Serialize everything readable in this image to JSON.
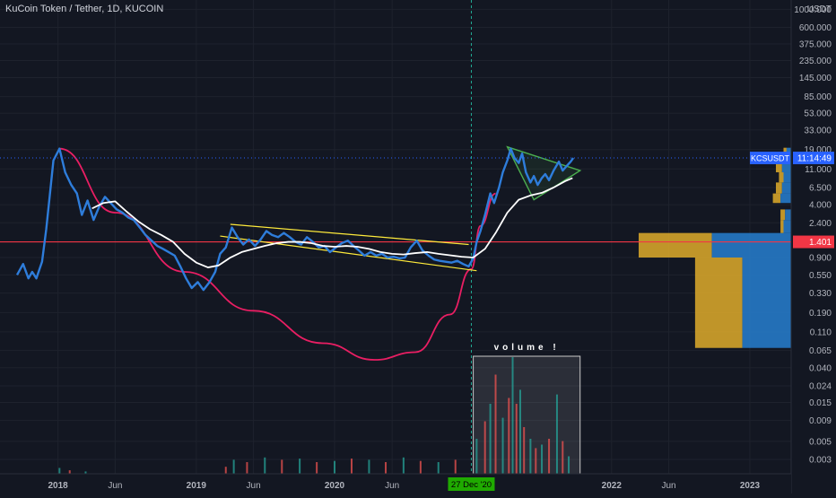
{
  "header": {
    "title": "KuCoin Token / Tether, 1D, KUCOIN"
  },
  "chart_data": {
    "type": "line",
    "symbol": "KCSUSDT",
    "title": "KuCoin Token / Tether, 1D, KUCOIN",
    "price_scale": "log",
    "currency_label": "USDT",
    "y_ticks": [
      "1000.000",
      "600.000",
      "375.000",
      "235.000",
      "145.000",
      "85.000",
      "53.000",
      "33.000",
      "19.000",
      "11.000",
      "6.500",
      "4.000",
      "2.400",
      "0.900",
      "0.550",
      "0.330",
      "0.190",
      "0.110",
      "0.065",
      "0.040",
      "0.024",
      "0.015",
      "0.009",
      "0.005",
      "0.003"
    ],
    "x_ticks": [
      "2018",
      "Jun",
      "2019",
      "Jun",
      "2020",
      "Jun",
      "2022",
      "Jun",
      "2023"
    ],
    "x_ticks_bold": [
      "2018",
      "2019",
      "2020",
      "2022",
      "2023"
    ],
    "ylim": [
      0.002,
      1300
    ],
    "xlim": [
      "2017-08-01",
      "2023-04-20"
    ],
    "current_price": {
      "label": "KCSUSDT",
      "countdown": "11:14:49",
      "color": "#2962ff"
    },
    "horizontal_level": {
      "value": 1.401,
      "label": "1.401",
      "color": "#f23645"
    },
    "vertical_marker": {
      "date": "2020-12-27",
      "label": "27 Dec '20",
      "color": "#22ab94"
    },
    "annotation": {
      "text": "volume !"
    },
    "series": [
      {
        "color": "#2e7ddb",
        "points": [
          [
            "2017-09-15",
            0.55
          ],
          [
            "2017-10-01",
            0.75
          ],
          [
            "2017-10-15",
            0.5
          ],
          [
            "2017-10-25",
            0.6
          ],
          [
            "2017-11-05",
            0.5
          ],
          [
            "2017-11-20",
            0.8
          ],
          [
            "2017-12-01",
            2.0
          ],
          [
            "2017-12-10",
            5.0
          ],
          [
            "2017-12-20",
            14.0
          ],
          [
            "2018-01-05",
            19.5
          ],
          [
            "2018-01-20",
            10.0
          ],
          [
            "2018-02-05",
            7.0
          ],
          [
            "2018-02-20",
            5.5
          ],
          [
            "2018-03-05",
            3.0
          ],
          [
            "2018-03-20",
            4.5
          ],
          [
            "2018-04-05",
            2.6
          ],
          [
            "2018-04-20",
            3.8
          ],
          [
            "2018-05-05",
            5.0
          ],
          [
            "2018-05-20",
            4.2
          ],
          [
            "2018-06-05",
            3.5
          ],
          [
            "2018-06-20",
            3.2
          ],
          [
            "2018-07-05",
            2.8
          ],
          [
            "2018-07-20",
            2.6
          ],
          [
            "2018-08-05",
            2.1
          ],
          [
            "2018-08-20",
            1.7
          ],
          [
            "2018-09-05",
            1.45
          ],
          [
            "2018-09-20",
            1.25
          ],
          [
            "2018-10-05",
            1.15
          ],
          [
            "2018-10-20",
            1.05
          ],
          [
            "2018-11-05",
            0.95
          ],
          [
            "2018-11-20",
            0.7
          ],
          [
            "2018-12-05",
            0.5
          ],
          [
            "2018-12-20",
            0.38
          ],
          [
            "2019-01-05",
            0.45
          ],
          [
            "2019-01-20",
            0.36
          ],
          [
            "2019-02-05",
            0.45
          ],
          [
            "2019-02-20",
            0.6
          ],
          [
            "2019-03-05",
            1.0
          ],
          [
            "2019-03-20",
            1.2
          ],
          [
            "2019-04-05",
            2.1
          ],
          [
            "2019-04-20",
            1.6
          ],
          [
            "2019-05-05",
            1.3
          ],
          [
            "2019-05-20",
            1.5
          ],
          [
            "2019-06-05",
            1.25
          ],
          [
            "2019-06-20",
            1.5
          ],
          [
            "2019-07-05",
            1.9
          ],
          [
            "2019-07-20",
            1.7
          ],
          [
            "2019-08-05",
            1.6
          ],
          [
            "2019-08-20",
            1.8
          ],
          [
            "2019-09-05",
            1.6
          ],
          [
            "2019-09-20",
            1.4
          ],
          [
            "2019-10-05",
            1.3
          ],
          [
            "2019-10-20",
            1.6
          ],
          [
            "2019-11-05",
            1.4
          ],
          [
            "2019-11-20",
            1.2
          ],
          [
            "2019-12-05",
            1.25
          ],
          [
            "2019-12-20",
            1.05
          ],
          [
            "2020-01-05",
            1.2
          ],
          [
            "2020-01-20",
            1.35
          ],
          [
            "2020-02-05",
            1.45
          ],
          [
            "2020-02-20",
            1.25
          ],
          [
            "2020-03-05",
            1.1
          ],
          [
            "2020-03-20",
            0.95
          ],
          [
            "2020-04-05",
            1.05
          ],
          [
            "2020-04-20",
            0.95
          ],
          [
            "2020-05-05",
            1.0
          ],
          [
            "2020-05-20",
            0.9
          ],
          [
            "2020-06-05",
            0.92
          ],
          [
            "2020-06-20",
            0.88
          ],
          [
            "2020-07-05",
            0.9
          ],
          [
            "2020-07-20",
            1.2
          ],
          [
            "2020-08-05",
            1.45
          ],
          [
            "2020-08-20",
            1.1
          ],
          [
            "2020-09-05",
            0.95
          ],
          [
            "2020-09-20",
            0.85
          ],
          [
            "2020-10-05",
            0.82
          ],
          [
            "2020-10-20",
            0.8
          ],
          [
            "2020-11-05",
            0.78
          ],
          [
            "2020-11-20",
            0.82
          ],
          [
            "2020-12-05",
            0.75
          ],
          [
            "2020-12-20",
            0.7
          ],
          [
            "2021-01-01",
            0.88
          ],
          [
            "2021-01-10",
            1.4
          ],
          [
            "2021-01-20",
            1.9
          ],
          [
            "2021-02-01",
            3.0
          ],
          [
            "2021-02-15",
            5.5
          ],
          [
            "2021-02-25",
            4.2
          ],
          [
            "2021-03-10",
            6.5
          ],
          [
            "2021-03-20",
            10.0
          ],
          [
            "2021-04-01",
            14.0
          ],
          [
            "2021-04-10",
            19.5
          ],
          [
            "2021-04-20",
            15.0
          ],
          [
            "2021-05-01",
            13.0
          ],
          [
            "2021-05-10",
            17.0
          ],
          [
            "2021-05-20",
            10.0
          ],
          [
            "2021-06-01",
            7.5
          ],
          [
            "2021-06-10",
            9.0
          ],
          [
            "2021-06-20",
            7.0
          ],
          [
            "2021-07-01",
            8.5
          ],
          [
            "2021-07-10",
            9.5
          ],
          [
            "2021-07-20",
            8.0
          ],
          [
            "2021-08-01",
            10.5
          ],
          [
            "2021-08-15",
            13.5
          ],
          [
            "2021-08-25",
            10.5
          ],
          [
            "2021-09-05",
            12.0
          ],
          [
            "2021-09-15",
            13.5
          ],
          [
            "2021-09-22",
            15.0
          ]
        ]
      },
      {
        "color": "#ffffff",
        "points": [
          [
            "2018-04-01",
            3.6
          ],
          [
            "2018-05-01",
            4.2
          ],
          [
            "2018-06-01",
            4.4
          ],
          [
            "2018-07-01",
            3.3
          ],
          [
            "2018-08-01",
            2.5
          ],
          [
            "2018-09-01",
            2.0
          ],
          [
            "2018-10-01",
            1.7
          ],
          [
            "2018-11-01",
            1.4
          ],
          [
            "2018-12-01",
            1.0
          ],
          [
            "2019-01-01",
            0.78
          ],
          [
            "2019-02-01",
            0.68
          ],
          [
            "2019-03-01",
            0.72
          ],
          [
            "2019-04-01",
            0.9
          ],
          [
            "2019-05-01",
            1.05
          ],
          [
            "2019-06-01",
            1.15
          ],
          [
            "2019-07-01",
            1.25
          ],
          [
            "2019-08-01",
            1.35
          ],
          [
            "2019-09-01",
            1.4
          ],
          [
            "2019-10-01",
            1.4
          ],
          [
            "2019-11-01",
            1.35
          ],
          [
            "2019-12-01",
            1.25
          ],
          [
            "2020-01-01",
            1.22
          ],
          [
            "2020-02-01",
            1.25
          ],
          [
            "2020-03-01",
            1.22
          ],
          [
            "2020-04-01",
            1.15
          ],
          [
            "2020-05-01",
            1.05
          ],
          [
            "2020-06-01",
            1.0
          ],
          [
            "2020-07-01",
            0.98
          ],
          [
            "2020-08-01",
            1.02
          ],
          [
            "2020-09-01",
            1.05
          ],
          [
            "2020-10-01",
            1.0
          ],
          [
            "2020-11-01",
            0.96
          ],
          [
            "2020-12-01",
            0.92
          ],
          [
            "2021-01-01",
            0.9
          ],
          [
            "2021-02-01",
            1.15
          ],
          [
            "2021-03-01",
            1.8
          ],
          [
            "2021-04-01",
            3.2
          ],
          [
            "2021-05-01",
            4.6
          ],
          [
            "2021-06-01",
            5.2
          ],
          [
            "2021-07-01",
            5.6
          ],
          [
            "2021-08-01",
            6.5
          ],
          [
            "2021-09-01",
            7.8
          ],
          [
            "2021-09-20",
            8.5
          ]
        ]
      }
    ],
    "drawings": [
      {
        "kind": "arc",
        "color": "#e91e63",
        "points": [
          [
            "2018-01-05",
            19.5
          ],
          [
            "2018-06-01",
            3.2
          ],
          [
            "2018-12-01",
            0.6
          ],
          [
            "2019-06-01",
            0.2
          ],
          [
            "2019-12-01",
            0.08
          ],
          [
            "2020-04-15",
            0.05
          ],
          [
            "2020-08-01",
            0.062
          ],
          [
            "2020-11-01",
            0.18
          ],
          [
            "2020-12-27",
            0.65
          ],
          [
            "2021-01-20",
            2.2
          ],
          [
            "2021-03-01",
            5.5
          ]
        ]
      },
      {
        "kind": "channel",
        "color": "#ffeb3b",
        "points": [
          [
            "2019-04-01",
            2.3
          ],
          [
            "2020-12-20",
            1.3
          ]
        ]
      },
      {
        "kind": "channel",
        "color": "#ffeb3b",
        "points": [
          [
            "2019-03-05",
            1.65
          ],
          [
            "2021-01-10",
            0.62
          ]
        ]
      },
      {
        "kind": "triangle",
        "color": "#4caf50",
        "points": [
          [
            "2021-04-01",
            20.5
          ],
          [
            "2021-10-10",
            10.5
          ],
          [
            "2021-06-10",
            4.6
          ]
        ]
      }
    ],
    "volume": {
      "color_up": "#26a69a",
      "color_down": "#ef5350",
      "data": [
        [
          "2018-01-05",
          0.05
        ],
        [
          "2018-02-01",
          0.03
        ],
        [
          "2018-03-15",
          0.02
        ],
        [
          "2019-03-20",
          0.06
        ],
        [
          "2019-04-10",
          0.12
        ],
        [
          "2019-05-15",
          0.1
        ],
        [
          "2019-07-01",
          0.14
        ],
        [
          "2019-08-15",
          0.12
        ],
        [
          "2019-10-01",
          0.13
        ],
        [
          "2019-11-15",
          0.1
        ],
        [
          "2020-01-01",
          0.11
        ],
        [
          "2020-02-15",
          0.13
        ],
        [
          "2020-04-01",
          0.12
        ],
        [
          "2020-05-15",
          0.1
        ],
        [
          "2020-07-01",
          0.14
        ],
        [
          "2020-08-15",
          0.11
        ],
        [
          "2020-10-01",
          0.1
        ],
        [
          "2020-11-15",
          0.12
        ],
        [
          "2021-01-10",
          0.3
        ],
        [
          "2021-02-01",
          0.45
        ],
        [
          "2021-02-15",
          0.6
        ],
        [
          "2021-03-01",
          0.85
        ],
        [
          "2021-03-20",
          0.48
        ],
        [
          "2021-04-05",
          0.65
        ],
        [
          "2021-04-15",
          1.0
        ],
        [
          "2021-04-25",
          0.6
        ],
        [
          "2021-05-05",
          0.72
        ],
        [
          "2021-05-15",
          0.4
        ],
        [
          "2021-06-01",
          0.3
        ],
        [
          "2021-06-15",
          0.22
        ],
        [
          "2021-07-01",
          0.25
        ],
        [
          "2021-07-20",
          0.3
        ],
        [
          "2021-08-10",
          0.68
        ],
        [
          "2021-08-25",
          0.28
        ],
        [
          "2021-09-10",
          0.15
        ]
      ]
    },
    "volume_profile": [
      {
        "low": 0.9,
        "high": 1.8,
        "up": 0.52,
        "down": 0.48
      },
      {
        "low": 0.07,
        "high": 0.9,
        "up": 0.32,
        "down": 0.31
      },
      {
        "low": 1.8,
        "high": 2.6,
        "up": 0.05,
        "down": 0.02
      },
      {
        "low": 2.6,
        "high": 3.5,
        "up": 0.04,
        "down": 0.03
      },
      {
        "low": 4.2,
        "high": 5.5,
        "up": 0.07,
        "down": 0.05
      },
      {
        "low": 5.5,
        "high": 7.5,
        "up": 0.06,
        "down": 0.04
      },
      {
        "low": 7.5,
        "high": 10,
        "up": 0.05,
        "down": 0.03
      },
      {
        "low": 10,
        "high": 14,
        "up": 0.06,
        "down": 0.04
      },
      {
        "low": 14,
        "high": 20,
        "up": 0.03,
        "down": 0.02
      }
    ]
  }
}
